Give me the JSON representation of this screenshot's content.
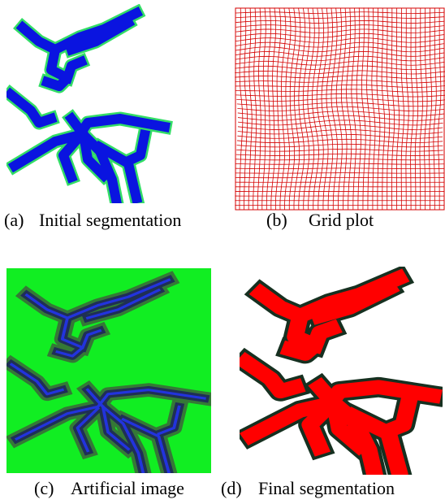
{
  "figure": {
    "subfigures": [
      {
        "label": "(a)",
        "caption": "Initial segmentation"
      },
      {
        "label": "(b)",
        "caption": "Grid plot"
      },
      {
        "label": "(c)",
        "caption": "Artificial image"
      },
      {
        "label": "(d)",
        "caption": "Final segmentation"
      }
    ]
  }
}
